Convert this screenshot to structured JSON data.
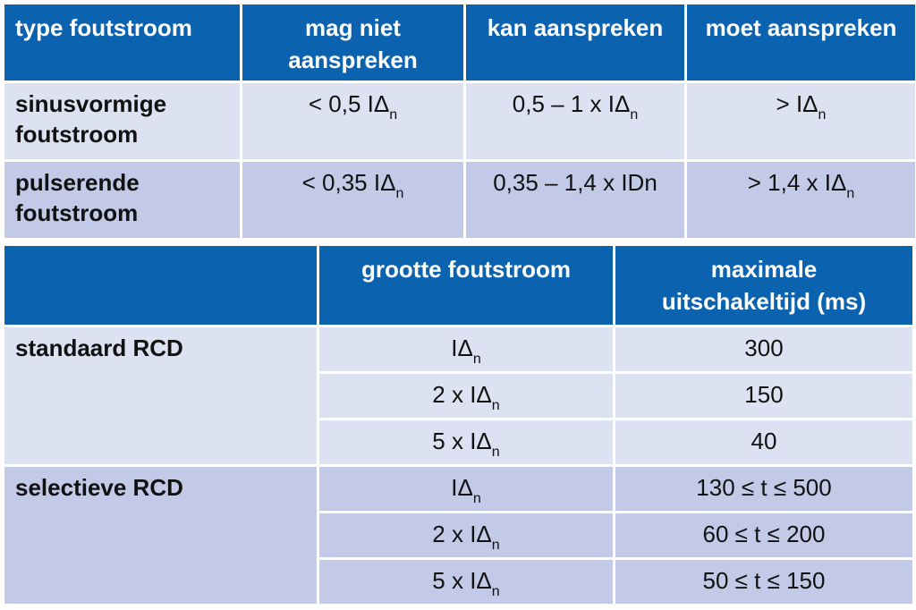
{
  "table1": {
    "header": [
      "type foutstroom",
      "mag niet aanspreken",
      "kan aanspreken",
      "moet aanspreken"
    ],
    "rows": [
      [
        "sinusvormige foutstroom",
        {
          "text": "< 0,5 IΔ",
          "sub": "n"
        },
        {
          "text": "0,5 – 1 x IΔ",
          "sub": "n"
        },
        {
          "text": "> IΔ",
          "sub": "n"
        }
      ],
      [
        "pulserende foutstroom",
        {
          "text": "< 0,35 IΔ",
          "sub": "n"
        },
        "0,35 – 1,4 x IDn",
        {
          "text": "> 1,4 x IΔ",
          "sub": "n"
        }
      ]
    ]
  },
  "table2": {
    "header": [
      "grootte foutstroom",
      "maximale uitschakeltijd (ms)"
    ],
    "groups": [
      {
        "label": "standaard RCD",
        "rows": [
          [
            {
              "text": "IΔ",
              "sub": "n"
            },
            300
          ],
          [
            {
              "text": "2 x IΔ",
              "sub": "n"
            },
            150
          ],
          [
            {
              "text": "5 x IΔ",
              "sub": "n"
            },
            40
          ]
        ]
      },
      {
        "label": "selectieve RCD",
        "rows": [
          [
            {
              "text": "IΔ",
              "sub": "n"
            },
            "130 ≤ t ≤ 500"
          ],
          [
            {
              "text": "2 x IΔ",
              "sub": "n"
            },
            "60 ≤ t ≤ 200"
          ],
          [
            {
              "text": "5 x IΔ",
              "sub": "n"
            },
            "50 ≤ t ≤ 150"
          ]
        ]
      }
    ]
  }
}
